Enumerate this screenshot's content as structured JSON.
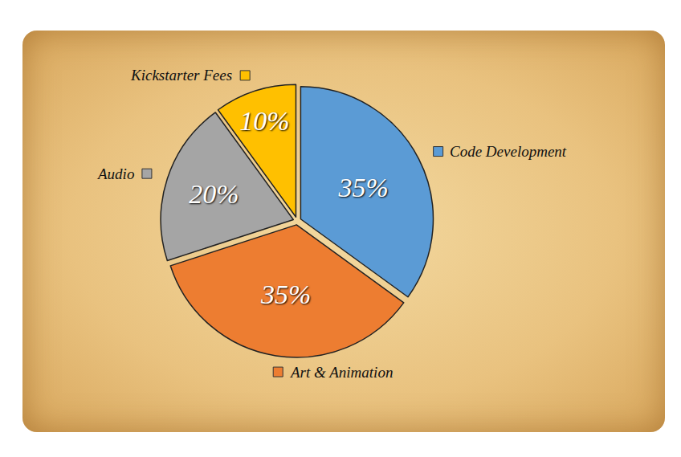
{
  "chart_data": {
    "type": "pie",
    "categories": [
      "Code Development",
      "Art & Animation",
      "Audio",
      "Kickstarter Fees"
    ],
    "values": [
      35,
      35,
      20,
      10
    ],
    "value_labels": [
      "35%",
      "35%",
      "20%",
      "10%"
    ],
    "colors": [
      "#5b9bd5",
      "#ed7d31",
      "#a5a5a5",
      "#ffc000"
    ],
    "data_labels": true
  }
}
